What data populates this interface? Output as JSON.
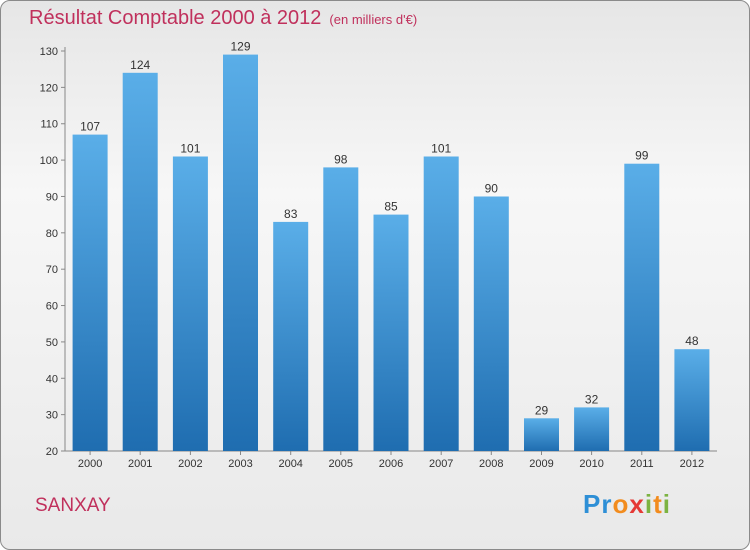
{
  "header": {
    "title": "Résultat Comptable 2000 à 2012",
    "subtitle": "(en milliers d'€)"
  },
  "footer": {
    "commune": "SANXAY",
    "logo_letters": [
      "P",
      "r",
      "o",
      "x",
      "i",
      "t",
      "i"
    ]
  },
  "colors": {
    "title": "#c0305c",
    "bar_light": "#5aaee8",
    "bar_dark": "#1f6db0",
    "logo": [
      "#2e8fd6",
      "#2e8fd6",
      "#f28c1e",
      "#e53935",
      "#7cb342",
      "#f28c1e",
      "#7cb342"
    ]
  },
  "chart_data": {
    "type": "bar",
    "categories": [
      "2000",
      "2001",
      "2002",
      "2003",
      "2004",
      "2005",
      "2006",
      "2007",
      "2008",
      "2009",
      "2010",
      "2011",
      "2012"
    ],
    "values": [
      107,
      124,
      101,
      129,
      83,
      98,
      85,
      101,
      90,
      29,
      32,
      99,
      48
    ],
    "ylim": [
      20,
      130
    ],
    "yticks": [
      20,
      30,
      40,
      50,
      60,
      70,
      80,
      90,
      100,
      110,
      120,
      130
    ],
    "grid": false,
    "data_labels": true
  }
}
